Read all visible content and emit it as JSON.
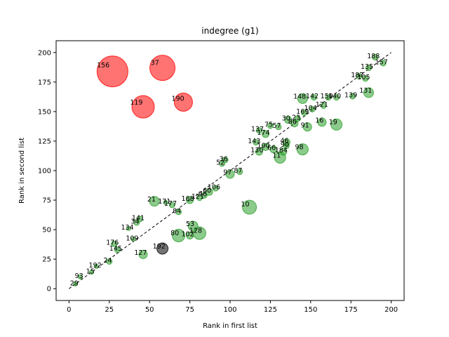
{
  "chart_data": {
    "type": "scatter",
    "title": "indegree (g1)",
    "xlabel": "Rank in first list",
    "ylabel": "Rank in second list",
    "xlim": [
      -8,
      208
    ],
    "ylim": [
      -10,
      210
    ],
    "xticks": [
      0,
      25,
      50,
      75,
      100,
      125,
      150,
      175,
      200
    ],
    "yticks": [
      0,
      25,
      50,
      75,
      100,
      125,
      150,
      175,
      200
    ],
    "grid": false,
    "reference_line": {
      "style": "dashed",
      "from": [
        0,
        0
      ],
      "to": [
        200,
        200
      ]
    },
    "colors": {
      "agree": "#2ca02c",
      "outlier": "#ff0000",
      "other": "#000000"
    },
    "series": [
      {
        "color": "outlier",
        "points": [
          {
            "x": 27,
            "y": 184,
            "size": 22,
            "label": "156"
          },
          {
            "x": 58,
            "y": 187,
            "size": 18,
            "label": "37"
          },
          {
            "x": 46,
            "y": 154,
            "size": 16,
            "label": "119"
          },
          {
            "x": 71,
            "y": 158,
            "size": 13,
            "label": "190"
          }
        ]
      },
      {
        "color": "other",
        "points": [
          {
            "x": 58,
            "y": 34,
            "size": 8,
            "label": "192"
          }
        ]
      },
      {
        "color": "agree",
        "points": [
          {
            "x": 112,
            "y": 69,
            "size": 10,
            "label": "10"
          },
          {
            "x": 53,
            "y": 74,
            "size": 7,
            "label": "21"
          },
          {
            "x": 145,
            "y": 161,
            "size": 7,
            "label": "148"
          },
          {
            "x": 186,
            "y": 166,
            "size": 7,
            "label": "131"
          },
          {
            "x": 81,
            "y": 47,
            "size": 9,
            "label": "128"
          },
          {
            "x": 68,
            "y": 45,
            "size": 9,
            "label": "80"
          },
          {
            "x": 46,
            "y": 29,
            "size": 6,
            "label": "127"
          },
          {
            "x": 145,
            "y": 118,
            "size": 8,
            "label": "98"
          },
          {
            "x": 131,
            "y": 111,
            "size": 8,
            "label": "11"
          },
          {
            "x": 166,
            "y": 139,
            "size": 8,
            "label": "19"
          },
          {
            "x": 157,
            "y": 141,
            "size": 6,
            "label": "16"
          },
          {
            "x": 148,
            "y": 137,
            "size": 6,
            "label": "91"
          },
          {
            "x": 140,
            "y": 140,
            "size": 5,
            "label": "86"
          },
          {
            "x": 136,
            "y": 143,
            "size": 5,
            "label": "30"
          },
          {
            "x": 142,
            "y": 144,
            "size": 4,
            "label": "23"
          },
          {
            "x": 176,
            "y": 163,
            "size": 4,
            "label": "139"
          },
          {
            "x": 161,
            "y": 162,
            "size": 4,
            "label": "150"
          },
          {
            "x": 152,
            "y": 162,
            "size": 4,
            "label": "142"
          },
          {
            "x": 77,
            "y": 53,
            "size": 7,
            "label": "53"
          },
          {
            "x": 75,
            "y": 45,
            "size": 5,
            "label": "102"
          },
          {
            "x": 68,
            "y": 65,
            "size": 4,
            "label": "84"
          },
          {
            "x": 64,
            "y": 71,
            "size": 4,
            "label": "177"
          },
          {
            "x": 60,
            "y": 73,
            "size": 3,
            "label": "171"
          },
          {
            "x": 44,
            "y": 59,
            "size": 4,
            "label": "141"
          },
          {
            "x": 42,
            "y": 56,
            "size": 4,
            "label": "34"
          },
          {
            "x": 37,
            "y": 51,
            "size": 3,
            "label": "134"
          },
          {
            "x": 40,
            "y": 42,
            "size": 3,
            "label": "109"
          },
          {
            "x": 100,
            "y": 97,
            "size": 6,
            "label": "97"
          },
          {
            "x": 106,
            "y": 99,
            "size": 4,
            "label": "87"
          },
          {
            "x": 95,
            "y": 106,
            "size": 4,
            "label": "52"
          },
          {
            "x": 97,
            "y": 109,
            "size": 4,
            "label": "36"
          },
          {
            "x": 118,
            "y": 116,
            "size": 5,
            "label": "130"
          },
          {
            "x": 122,
            "y": 120,
            "size": 5,
            "label": "100"
          },
          {
            "x": 127,
            "y": 118,
            "size": 5,
            "label": "66"
          },
          {
            "x": 133,
            "y": 116,
            "size": 5,
            "label": "184"
          },
          {
            "x": 135,
            "y": 124,
            "size": 5,
            "label": "46"
          },
          {
            "x": 135,
            "y": 121,
            "size": 4,
            "label": "90"
          },
          {
            "x": 122,
            "y": 131,
            "size": 5,
            "label": "174"
          },
          {
            "x": 116,
            "y": 124,
            "size": 4,
            "label": "143"
          },
          {
            "x": 130,
            "y": 137,
            "size": 4,
            "label": "57"
          },
          {
            "x": 125,
            "y": 138,
            "size": 4,
            "label": "75"
          },
          {
            "x": 118,
            "y": 134,
            "size": 4,
            "label": "137"
          },
          {
            "x": 146,
            "y": 149,
            "size": 4,
            "label": "169"
          },
          {
            "x": 151,
            "y": 152,
            "size": 4,
            "label": "104"
          },
          {
            "x": 158,
            "y": 155,
            "size": 4,
            "label": "121"
          },
          {
            "x": 166,
            "y": 162,
            "size": 4,
            "label": "140"
          },
          {
            "x": 184,
            "y": 178,
            "size": 4,
            "label": "105"
          },
          {
            "x": 180,
            "y": 180,
            "size": 4,
            "label": "187"
          },
          {
            "x": 186,
            "y": 187,
            "size": 4,
            "label": "135"
          },
          {
            "x": 190,
            "y": 196,
            "size": 4,
            "label": "188"
          },
          {
            "x": 195,
            "y": 191,
            "size": 4,
            "label": "157"
          },
          {
            "x": 75,
            "y": 75,
            "size": 5,
            "label": "168"
          },
          {
            "x": 81,
            "y": 77,
            "size": 4,
            "label": "121"
          },
          {
            "x": 84,
            "y": 79,
            "size": 4,
            "label": "96"
          },
          {
            "x": 87,
            "y": 82,
            "size": 5,
            "label": "60"
          },
          {
            "x": 91,
            "y": 85,
            "size": 4,
            "label": "106"
          },
          {
            "x": 28,
            "y": 38,
            "size": 4,
            "label": "176"
          },
          {
            "x": 30,
            "y": 33,
            "size": 4,
            "label": "145"
          },
          {
            "x": 25,
            "y": 23,
            "size": 4,
            "label": "24"
          },
          {
            "x": 17,
            "y": 19,
            "size": 3,
            "label": "192"
          },
          {
            "x": 14,
            "y": 14,
            "size": 3,
            "label": "15"
          },
          {
            "x": 7,
            "y": 10,
            "size": 3,
            "label": "93"
          },
          {
            "x": 4,
            "y": 4,
            "size": 3,
            "label": "29"
          }
        ]
      }
    ]
  }
}
